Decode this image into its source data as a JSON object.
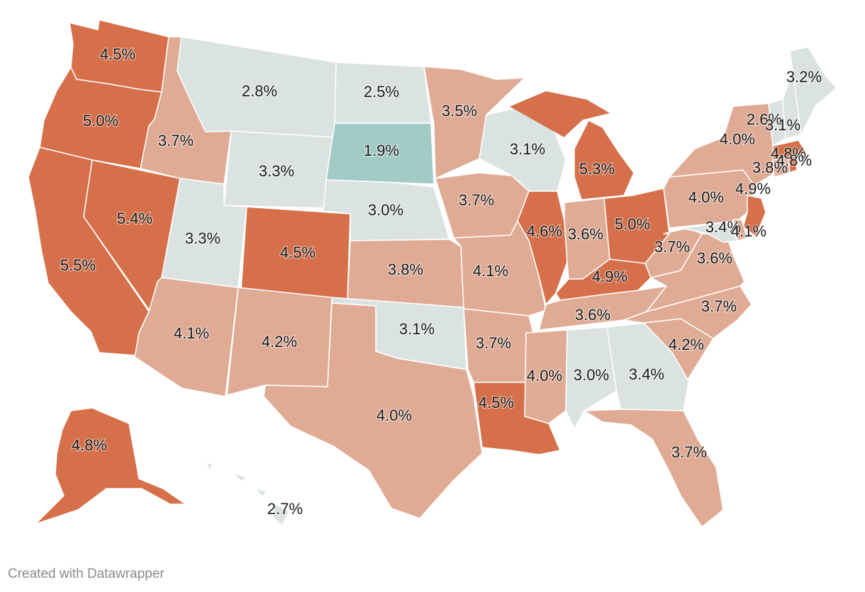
{
  "credit": "Created with Datawrapper",
  "colors": {
    "dark": "#d5704b",
    "mid": "#dfab95",
    "light": "#dbe3e2",
    "teal": "#a3cbc6"
  },
  "chart_data": {
    "type": "choropleth",
    "unit": "%",
    "states": [
      {
        "id": "WA",
        "value": 4.5,
        "label": "4.5%"
      },
      {
        "id": "OR",
        "value": 5.0,
        "label": "5.0%"
      },
      {
        "id": "CA",
        "value": 5.5,
        "label": "5.5%"
      },
      {
        "id": "NV",
        "value": 5.4,
        "label": "5.4%"
      },
      {
        "id": "ID",
        "value": 3.7,
        "label": "3.7%"
      },
      {
        "id": "MT",
        "value": 2.8,
        "label": "2.8%"
      },
      {
        "id": "WY",
        "value": 3.3,
        "label": "3.3%"
      },
      {
        "id": "UT",
        "value": 3.3,
        "label": "3.3%"
      },
      {
        "id": "AZ",
        "value": 4.1,
        "label": "4.1%"
      },
      {
        "id": "CO",
        "value": 4.5,
        "label": "4.5%"
      },
      {
        "id": "NM",
        "value": 4.2,
        "label": "4.2%"
      },
      {
        "id": "ND",
        "value": 2.5,
        "label": "2.5%"
      },
      {
        "id": "SD",
        "value": 1.9,
        "label": "1.9%"
      },
      {
        "id": "NE",
        "value": 3.0,
        "label": "3.0%"
      },
      {
        "id": "KS",
        "value": 3.8,
        "label": "3.8%"
      },
      {
        "id": "OK",
        "value": 3.1,
        "label": "3.1%"
      },
      {
        "id": "TX",
        "value": 4.0,
        "label": "4.0%"
      },
      {
        "id": "MN",
        "value": 3.5,
        "label": "3.5%"
      },
      {
        "id": "IA",
        "value": 3.7,
        "label": "3.7%"
      },
      {
        "id": "MO",
        "value": 4.1,
        "label": "4.1%"
      },
      {
        "id": "AR",
        "value": 3.7,
        "label": "3.7%"
      },
      {
        "id": "LA",
        "value": 4.5,
        "label": "4.5%"
      },
      {
        "id": "WI",
        "value": 3.1,
        "label": "3.1%"
      },
      {
        "id": "IL",
        "value": 4.6,
        "label": "4.6%"
      },
      {
        "id": "MI",
        "value": 5.3,
        "label": "5.3%"
      },
      {
        "id": "IN",
        "value": 3.6,
        "label": "3.6%"
      },
      {
        "id": "OH",
        "value": 5.0,
        "label": "5.0%"
      },
      {
        "id": "KY",
        "value": 4.9,
        "label": "4.9%"
      },
      {
        "id": "TN",
        "value": 3.6,
        "label": "3.6%"
      },
      {
        "id": "MS",
        "value": 4.0,
        "label": "4.0%"
      },
      {
        "id": "AL",
        "value": 3.0,
        "label": "3.0%"
      },
      {
        "id": "GA",
        "value": 3.4,
        "label": "3.4%"
      },
      {
        "id": "FL",
        "value": 3.7,
        "label": "3.7%"
      },
      {
        "id": "SC",
        "value": 4.2,
        "label": "4.2%"
      },
      {
        "id": "NC",
        "value": 3.7,
        "label": "3.7%"
      },
      {
        "id": "VA",
        "value": 3.6,
        "label": "3.6%"
      },
      {
        "id": "WV",
        "value": 3.7,
        "label": "3.7%"
      },
      {
        "id": "PA",
        "value": 4.0,
        "label": "4.0%"
      },
      {
        "id": "NY",
        "value": 4.0,
        "label": "4.0%"
      },
      {
        "id": "NJ",
        "value": 4.9,
        "label": "4.9%"
      },
      {
        "id": "MD",
        "value": 3.4,
        "label": "3.4%"
      },
      {
        "id": "DE",
        "value": 4.1,
        "label": "4.1%"
      },
      {
        "id": "CT",
        "value": 3.8,
        "label": "3.8%"
      },
      {
        "id": "MA",
        "value": 4.8,
        "label": "4.8%"
      },
      {
        "id": "RI",
        "value": 4.8,
        "label": "4.8%"
      },
      {
        "id": "VT",
        "value": 2.6,
        "label": "2.6%"
      },
      {
        "id": "NH",
        "value": 3.1,
        "label": "3.1%"
      },
      {
        "id": "ME",
        "value": 3.2,
        "label": "3.2%"
      },
      {
        "id": "AK",
        "value": 4.8,
        "label": "4.8%"
      },
      {
        "id": "HI",
        "value": 2.7,
        "label": "2.7%"
      }
    ]
  }
}
